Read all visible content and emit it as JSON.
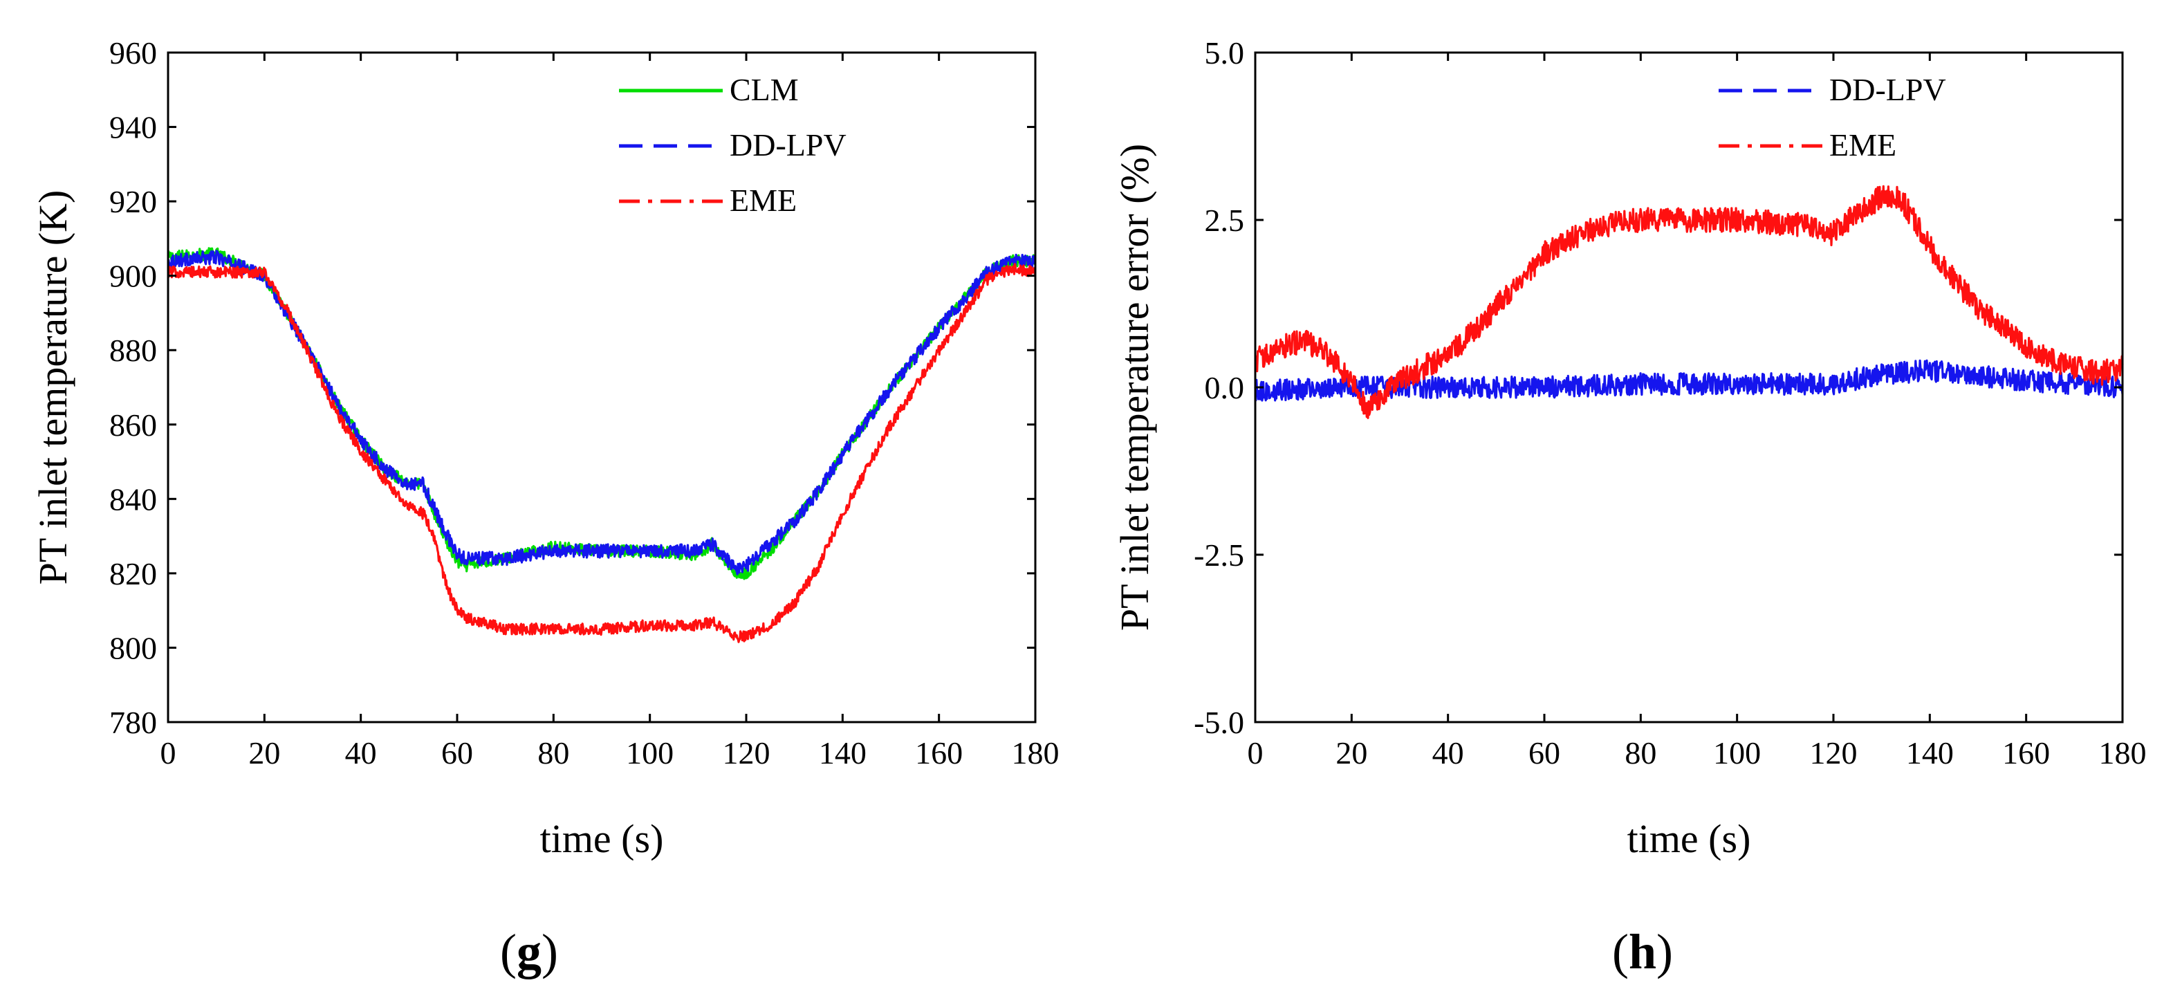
{
  "chart_data": [
    {
      "id": "g",
      "type": "line",
      "panel_label_open": "(",
      "panel_label_letter": "g",
      "panel_label_close": ")",
      "title": "",
      "xlabel": "time (s)",
      "ylabel": "PT inlet temperature (K)",
      "xlim": [
        0,
        180
      ],
      "ylim": [
        780,
        960
      ],
      "xticks": [
        0,
        20,
        40,
        60,
        80,
        100,
        120,
        140,
        160,
        180
      ],
      "yticks": [
        780,
        800,
        820,
        840,
        860,
        880,
        900,
        920,
        940,
        960
      ],
      "xtick_labels": [
        "0",
        "20",
        "40",
        "60",
        "80",
        "100",
        "120",
        "140",
        "160",
        "180"
      ],
      "ytick_labels": [
        "780",
        "800",
        "820",
        "840",
        "860",
        "880",
        "900",
        "920",
        "940",
        "960"
      ],
      "grid": false,
      "legend_position": "top-right",
      "series": [
        {
          "name": "CLM",
          "color": "#00dd00",
          "dash": "solid",
          "noise": 1.6,
          "x": [
            0,
            10,
            20,
            25,
            30,
            35,
            40,
            45,
            50,
            53,
            55,
            58,
            60,
            62,
            65,
            70,
            80,
            90,
            100,
            110,
            113,
            115,
            118,
            120,
            125,
            130,
            135,
            140,
            150,
            160,
            170,
            175,
            180
          ],
          "values": [
            905,
            906,
            900,
            889,
            878,
            866,
            856,
            848,
            844,
            844,
            837,
            828,
            823,
            822,
            823,
            824,
            827,
            826,
            826,
            825,
            828,
            824,
            820,
            820,
            826,
            834,
            842,
            852,
            870,
            886,
            901,
            904,
            904
          ]
        },
        {
          "name": "DD-LPV",
          "color": "#1515ee",
          "dash": "dashed",
          "noise": 1.8,
          "x": [
            0,
            10,
            20,
            25,
            30,
            35,
            40,
            45,
            50,
            53,
            55,
            58,
            60,
            62,
            65,
            70,
            80,
            90,
            100,
            110,
            113,
            115,
            118,
            120,
            125,
            130,
            135,
            140,
            150,
            160,
            170,
            175,
            180
          ],
          "values": [
            904,
            905,
            900,
            889,
            878,
            866,
            856,
            848,
            844,
            844,
            838,
            830,
            825,
            824,
            824,
            824,
            826,
            826,
            826,
            826,
            828,
            825,
            821,
            822,
            828,
            834,
            842,
            852,
            870,
            886,
            901,
            904,
            904
          ]
        },
        {
          "name": "EME",
          "color": "#ff1010",
          "dash": "dashdot",
          "noise": 1.5,
          "x": [
            0,
            10,
            20,
            25,
            30,
            35,
            40,
            45,
            50,
            53,
            55,
            58,
            60,
            62,
            65,
            70,
            80,
            90,
            100,
            110,
            113,
            115,
            118,
            120,
            125,
            130,
            135,
            140,
            150,
            160,
            170,
            175,
            180
          ],
          "values": [
            901,
            901,
            901,
            890,
            877,
            863,
            853,
            845,
            838,
            836,
            830,
            816,
            810,
            808,
            807,
            805,
            805,
            805,
            806,
            806,
            807,
            805,
            803,
            803,
            806,
            812,
            822,
            836,
            860,
            880,
            899,
            902,
            901
          ]
        }
      ]
    },
    {
      "id": "h",
      "type": "line",
      "panel_label_open": "(",
      "panel_label_letter": "h",
      "panel_label_close": ")",
      "title": "",
      "xlabel": "time (s)",
      "ylabel": "PT inlet temperature error (%)",
      "xlim": [
        0,
        180
      ],
      "ylim": [
        -5.0,
        5.0
      ],
      "xticks": [
        0,
        20,
        40,
        60,
        80,
        100,
        120,
        140,
        160,
        180
      ],
      "yticks": [
        -5.0,
        -2.5,
        0.0,
        2.5,
        5.0
      ],
      "xtick_labels": [
        "0",
        "20",
        "40",
        "60",
        "80",
        "100",
        "120",
        "140",
        "160",
        "180"
      ],
      "ytick_labels": [
        "-5.0",
        "-2.5",
        "0.0",
        "2.5",
        "5.0"
      ],
      "grid": false,
      "legend_position": "top-right",
      "series": [
        {
          "name": "DD-LPV",
          "color": "#1515ee",
          "dash": "dashed",
          "noise": 0.16,
          "x": [
            0,
            20,
            40,
            60,
            80,
            100,
            120,
            130,
            140,
            160,
            180
          ],
          "values": [
            -0.05,
            0.0,
            0.0,
            0.0,
            0.05,
            0.05,
            0.05,
            0.2,
            0.25,
            0.1,
            0.0
          ]
        },
        {
          "name": "EME",
          "color": "#ff1010",
          "dash": "dashdot",
          "noise": 0.18,
          "x": [
            0,
            5,
            10,
            15,
            20,
            23,
            25,
            30,
            35,
            40,
            45,
            50,
            55,
            60,
            65,
            70,
            75,
            80,
            90,
            100,
            110,
            115,
            118,
            120,
            125,
            130,
            133,
            135,
            140,
            145,
            150,
            155,
            160,
            165,
            170,
            175,
            180
          ],
          "values": [
            0.4,
            0.6,
            0.7,
            0.5,
            0.1,
            -0.3,
            -0.2,
            0.1,
            0.3,
            0.5,
            0.8,
            1.2,
            1.6,
            2.0,
            2.2,
            2.35,
            2.45,
            2.5,
            2.5,
            2.5,
            2.45,
            2.4,
            2.3,
            2.3,
            2.6,
            2.85,
            2.85,
            2.7,
            2.1,
            1.6,
            1.2,
            0.9,
            0.6,
            0.4,
            0.3,
            0.2,
            0.3
          ]
        }
      ]
    }
  ]
}
